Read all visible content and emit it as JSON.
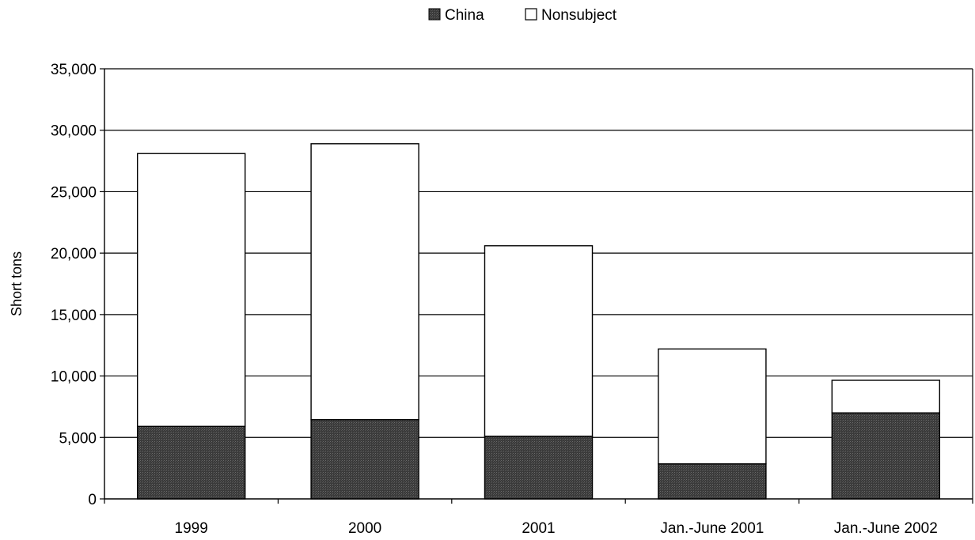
{
  "chart_data": {
    "type": "bar",
    "stacked": true,
    "categories": [
      "1999",
      "2000",
      "2001",
      "Jan.-June 2001",
      "Jan.-June 2002"
    ],
    "series": [
      {
        "name": "China",
        "values": [
          5900,
          6450,
          5100,
          2850,
          7000
        ],
        "color": "#3a3a3a"
      },
      {
        "name": "Nonsubject",
        "values": [
          22200,
          22450,
          15500,
          9350,
          2650
        ],
        "color": "#ffffff"
      }
    ],
    "ylabel": "Short tons",
    "ylim": [
      0,
      35000
    ],
    "yticks": [
      0,
      5000,
      10000,
      15000,
      20000,
      25000,
      30000,
      35000
    ],
    "ytick_labels": [
      "0",
      "5,000",
      "10,000",
      "15,000",
      "20,000",
      "25,000",
      "30,000",
      "35,000"
    ],
    "grid": true,
    "legend_position": "top-center"
  }
}
